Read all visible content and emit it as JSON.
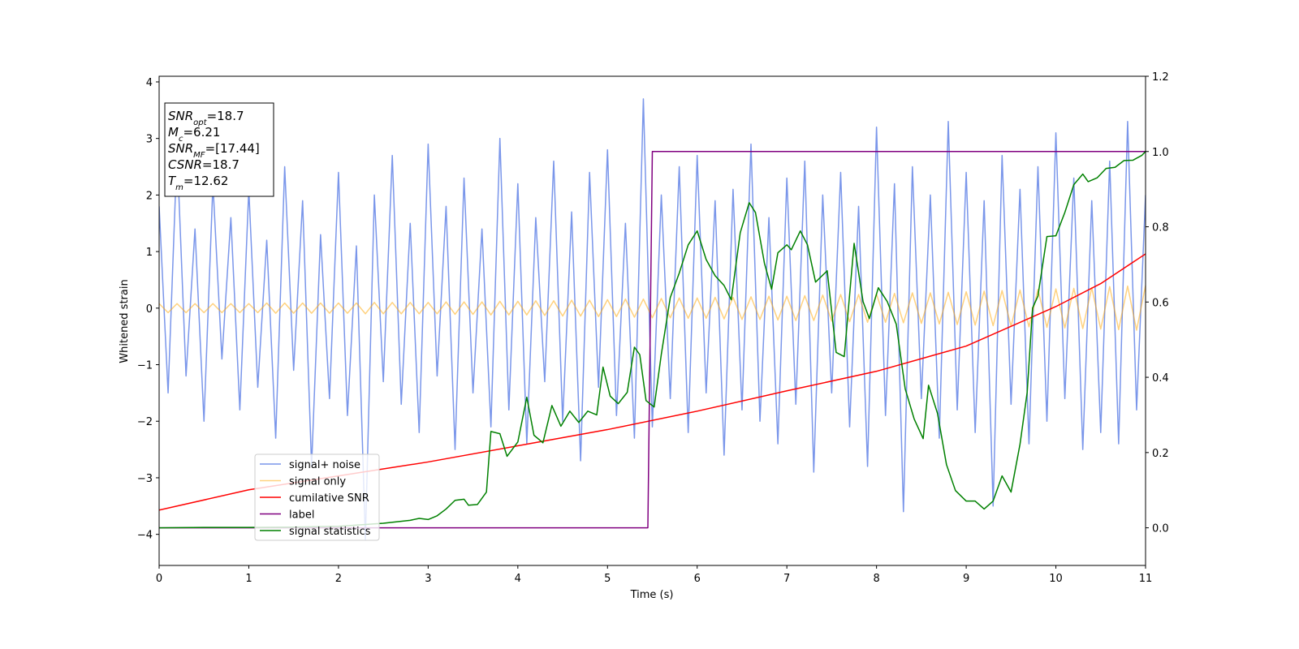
{
  "chart_data": {
    "type": "line",
    "xlabel": "Time (s)",
    "ylabel": "Whitened strain",
    "xlim": [
      0,
      11
    ],
    "xticks": [
      0,
      1,
      2,
      3,
      4,
      5,
      6,
      7,
      8,
      9,
      10,
      11
    ],
    "ylim": [
      -4.55,
      4.1
    ],
    "yticks": [
      {
        "value": -4,
        "label": "−4"
      },
      {
        "value": -3,
        "label": "−3"
      },
      {
        "value": -2,
        "label": "−2"
      },
      {
        "value": -1,
        "label": "−1"
      },
      0,
      1,
      2,
      3,
      4
    ],
    "y2lim": [
      -0.1,
      1.2
    ],
    "y2ticks": [
      {
        "value": 0,
        "label": "0.0"
      },
      0.2,
      0.4,
      0.6,
      0.8,
      {
        "value": 1,
        "label": "1.0"
      },
      1.2
    ],
    "legend_loc": "lower left",
    "annotation": [
      {
        "symbol": "SNR",
        "sub": "opt",
        "text": "=18.7"
      },
      {
        "symbol": "M",
        "sub": "c",
        "text": "=6.21"
      },
      {
        "symbol": "SNR",
        "sub": "MF",
        "text": "=[17.44]"
      },
      {
        "symbol": "CSNR",
        "text": "=18.7"
      },
      {
        "symbol": "T",
        "sub": "m",
        "text": "=12.62"
      }
    ],
    "x": [
      0,
      0.1,
      0.2,
      0.3,
      0.4,
      0.5,
      0.6,
      0.7,
      0.8,
      0.9,
      1,
      1.1,
      1.2,
      1.3,
      1.4,
      1.5,
      1.6,
      1.7,
      1.8,
      1.9,
      2,
      2.1,
      2.2,
      2.3,
      2.4,
      2.5,
      2.6,
      2.7,
      2.8,
      2.9,
      3,
      3.1,
      3.2,
      3.3,
      3.4,
      3.5,
      3.6,
      3.7,
      3.8,
      3.9,
      4,
      4.1,
      4.2,
      4.3,
      4.4,
      4.5,
      4.6,
      4.7,
      4.8,
      4.9,
      5,
      5.1,
      5.2,
      5.3,
      5.4,
      5.5,
      5.6,
      5.7,
      5.8,
      5.9,
      6,
      6.1,
      6.2,
      6.3,
      6.4,
      6.5,
      6.6,
      6.7,
      6.8,
      6.9,
      7,
      7.1,
      7.2,
      7.3,
      7.4,
      7.5,
      7.6,
      7.7,
      7.8,
      7.9,
      8,
      8.1,
      8.2,
      8.3,
      8.4,
      8.5,
      8.6,
      8.7,
      8.8,
      8.9,
      9,
      9.1,
      9.2,
      9.3,
      9.4,
      9.5,
      9.6,
      9.7,
      9.8,
      9.9,
      10,
      10.1,
      10.2,
      10.3,
      10.4,
      10.5,
      10.6,
      10.7,
      10.8,
      10.9,
      11
    ],
    "series": [
      {
        "name": "signal+ noise",
        "color": "#4169e1",
        "alpha": 0.7,
        "values": [
          1.8,
          -1.5,
          2.8,
          -1.2,
          1.4,
          -2.0,
          2.2,
          -0.9,
          1.6,
          -1.8,
          2.1,
          -1.4,
          1.2,
          -2.3,
          2.5,
          -1.1,
          1.9,
          -2.8,
          1.3,
          -1.6,
          2.4,
          -1.9,
          1.1,
          -4.1,
          2.0,
          -1.3,
          2.7,
          -1.7,
          1.5,
          -2.2,
          2.9,
          -1.2,
          1.8,
          -2.5,
          2.3,
          -1.5,
          1.4,
          -2.1,
          3.0,
          -1.8,
          2.2,
          -2.4,
          1.6,
          -1.3,
          2.6,
          -2.0,
          1.7,
          -2.7,
          2.4,
          -1.4,
          2.8,
          -1.9,
          1.5,
          -2.3,
          3.7,
          -2.1,
          2.0,
          -1.6,
          2.5,
          -2.2,
          2.7,
          -1.5,
          1.9,
          -2.6,
          2.1,
          -1.8,
          2.9,
          -2.0,
          1.6,
          -2.4,
          2.3,
          -1.7,
          2.6,
          -2.9,
          2.0,
          -1.5,
          2.4,
          -2.1,
          1.8,
          -2.8,
          3.2,
          -1.9,
          2.2,
          -3.6,
          2.5,
          -1.6,
          2.0,
          -2.3,
          3.3,
          -1.8,
          2.4,
          -2.2,
          1.9,
          -3.5,
          2.7,
          -1.7,
          2.1,
          -2.4,
          2.5,
          -2.0,
          3.1,
          -1.6,
          2.3,
          -2.5,
          1.9,
          -2.2,
          2.6,
          -2.4,
          3.3,
          -1.8,
          2.0
        ]
      },
      {
        "name": "signal only",
        "color": "#ffa500",
        "alpha": 0.5,
        "values": [
          0.08,
          -0.08,
          0.08,
          -0.08,
          0.08,
          -0.08,
          0.08,
          -0.08,
          0.08,
          -0.08,
          0.08,
          -0.08,
          0.09,
          -0.09,
          0.09,
          -0.09,
          0.09,
          -0.09,
          0.09,
          -0.09,
          0.09,
          -0.09,
          0.09,
          -0.1,
          0.1,
          -0.1,
          0.1,
          -0.1,
          0.1,
          -0.1,
          0.1,
          -0.1,
          0.11,
          -0.11,
          0.11,
          -0.11,
          0.11,
          -0.12,
          0.12,
          -0.12,
          0.12,
          -0.12,
          0.13,
          -0.13,
          0.13,
          -0.14,
          0.14,
          -0.14,
          0.14,
          -0.15,
          0.15,
          -0.15,
          0.16,
          -0.16,
          0.16,
          -0.17,
          0.17,
          -0.17,
          0.18,
          -0.18,
          0.18,
          -0.18,
          0.19,
          -0.19,
          0.19,
          -0.2,
          0.2,
          -0.2,
          0.21,
          -0.21,
          0.21,
          -0.22,
          0.22,
          -0.22,
          0.23,
          -0.23,
          0.24,
          -0.24,
          0.24,
          -0.25,
          0.25,
          -0.25,
          0.26,
          -0.26,
          0.27,
          -0.27,
          0.27,
          -0.28,
          0.28,
          -0.29,
          0.29,
          -0.3,
          0.3,
          -0.31,
          0.31,
          -0.32,
          0.32,
          -0.33,
          0.33,
          -0.34,
          0.34,
          -0.35,
          0.35,
          -0.36,
          0.36,
          -0.37,
          0.38,
          -0.38,
          0.39,
          -0.39,
          0.4
        ]
      },
      {
        "name": "cumilative SNR",
        "color": "#ff0000",
        "alpha": 1,
        "axis": "y2",
        "x": [
          0,
          1,
          2,
          3,
          4,
          5,
          6,
          7,
          8,
          9,
          10,
          10.5,
          11
        ],
        "values": [
          0.047,
          0.101,
          0.138,
          0.175,
          0.218,
          0.261,
          0.31,
          0.364,
          0.416,
          0.483,
          0.588,
          0.649,
          0.728
        ]
      },
      {
        "name": "label",
        "color": "#800080",
        "alpha": 1,
        "axis": "y2",
        "x": [
          0,
          5.45,
          5.5,
          11
        ],
        "values": [
          0,
          0,
          1,
          1
        ]
      },
      {
        "name": "signal statistics",
        "color": "#008000",
        "alpha": 1,
        "axis": "y2",
        "x": [
          0,
          0.5,
          1,
          1.5,
          2,
          2.5,
          2.8,
          2.9,
          3.0,
          3.1,
          3.2,
          3.3,
          3.4,
          3.45,
          3.55,
          3.65,
          3.7,
          3.8,
          3.88,
          4.0,
          4.1,
          4.18,
          4.28,
          4.38,
          4.48,
          4.58,
          4.68,
          4.78,
          4.88,
          4.95,
          5.03,
          5.12,
          5.22,
          5.3,
          5.36,
          5.43,
          5.52,
          5.6,
          5.7,
          5.8,
          5.9,
          6.0,
          6.1,
          6.2,
          6.3,
          6.38,
          6.48,
          6.58,
          6.65,
          6.75,
          6.83,
          6.9,
          7.0,
          7.05,
          7.15,
          7.23,
          7.32,
          7.45,
          7.55,
          7.64,
          7.75,
          7.85,
          7.92,
          8.02,
          8.12,
          8.22,
          8.32,
          8.42,
          8.52,
          8.58,
          8.68,
          8.78,
          8.88,
          9.0,
          9.1,
          9.2,
          9.3,
          9.4,
          9.5,
          9.6,
          9.68,
          9.74,
          9.8,
          9.9,
          10.0,
          10.1,
          10.2,
          10.3,
          10.36,
          10.46,
          10.56,
          10.66,
          10.76,
          10.86,
          10.96,
          11
        ],
        "values": [
          0,
          0.001,
          0.001,
          0.002,
          0.004,
          0.012,
          0.02,
          0.025,
          0.022,
          0.032,
          0.05,
          0.073,
          0.076,
          0.06,
          0.062,
          0.095,
          0.256,
          0.25,
          0.19,
          0.228,
          0.347,
          0.246,
          0.226,
          0.325,
          0.27,
          0.31,
          0.28,
          0.31,
          0.3,
          0.427,
          0.35,
          0.33,
          0.36,
          0.48,
          0.46,
          0.338,
          0.321,
          0.461,
          0.612,
          0.677,
          0.752,
          0.789,
          0.713,
          0.67,
          0.644,
          0.606,
          0.784,
          0.864,
          0.838,
          0.703,
          0.634,
          0.731,
          0.752,
          0.739,
          0.789,
          0.752,
          0.653,
          0.683,
          0.466,
          0.455,
          0.756,
          0.601,
          0.556,
          0.638,
          0.601,
          0.541,
          0.369,
          0.289,
          0.237,
          0.379,
          0.304,
          0.168,
          0.099,
          0.071,
          0.071,
          0.05,
          0.071,
          0.138,
          0.095,
          0.222,
          0.36,
          0.584,
          0.616,
          0.774,
          0.776,
          0.838,
          0.912,
          0.94,
          0.92,
          0.93,
          0.955,
          0.958,
          0.976,
          0.977,
          0.99,
          1.0
        ]
      }
    ]
  }
}
